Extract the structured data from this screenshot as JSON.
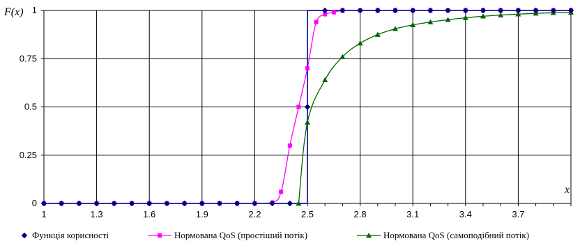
{
  "chart_data": {
    "type": "line",
    "xlabel": "x",
    "ylabel": "F(x)",
    "xlim": [
      1,
      4
    ],
    "ylim": [
      0,
      1
    ],
    "grid": true,
    "x_ticks": [
      "1",
      "1.3",
      "1.6",
      "1.9",
      "2.2",
      "2.5",
      "2.8",
      "3.1",
      "3.4",
      "3.7"
    ],
    "y_ticks": [
      "0",
      "0.25",
      "0.5",
      "0.75",
      "1"
    ],
    "legend_position": "bottom",
    "series": [
      {
        "name": "Функція корисності",
        "color": "#000080",
        "marker": "diamond",
        "line": "step",
        "points": [
          [
            1.0,
            0
          ],
          [
            1.1,
            0
          ],
          [
            1.2,
            0
          ],
          [
            1.3,
            0
          ],
          [
            1.4,
            0
          ],
          [
            1.5,
            0
          ],
          [
            1.6,
            0
          ],
          [
            1.7,
            0
          ],
          [
            1.8,
            0
          ],
          [
            1.9,
            0
          ],
          [
            2.0,
            0
          ],
          [
            2.1,
            0
          ],
          [
            2.2,
            0
          ],
          [
            2.3,
            0
          ],
          [
            2.4,
            0
          ],
          [
            2.5,
            0.5
          ],
          [
            2.6,
            1
          ],
          [
            2.7,
            1
          ],
          [
            2.8,
            1
          ],
          [
            2.9,
            1
          ],
          [
            3.0,
            1
          ],
          [
            3.1,
            1
          ],
          [
            3.2,
            1
          ],
          [
            3.3,
            1
          ],
          [
            3.4,
            1
          ],
          [
            3.5,
            1
          ],
          [
            3.6,
            1
          ],
          [
            3.7,
            1
          ],
          [
            3.8,
            1
          ],
          [
            3.9,
            1
          ],
          [
            4.0,
            1
          ]
        ]
      },
      {
        "name": "Нормована QoS (простіший потік)",
        "color": "#FF00FF",
        "marker": "square",
        "line": "smooth",
        "points": [
          [
            1.0,
            0
          ],
          [
            1.1,
            0
          ],
          [
            1.2,
            0
          ],
          [
            1.3,
            0
          ],
          [
            1.4,
            0
          ],
          [
            1.5,
            0
          ],
          [
            1.6,
            0
          ],
          [
            1.7,
            0
          ],
          [
            1.8,
            0
          ],
          [
            1.9,
            0
          ],
          [
            2.0,
            0
          ],
          [
            2.1,
            0
          ],
          [
            2.2,
            0
          ],
          [
            2.3,
            0.005
          ],
          [
            2.35,
            0.06
          ],
          [
            2.4,
            0.3
          ],
          [
            2.45,
            0.5
          ],
          [
            2.5,
            0.7
          ],
          [
            2.55,
            0.94
          ],
          [
            2.6,
            0.98
          ],
          [
            2.65,
            0.99
          ],
          [
            2.7,
            1
          ],
          [
            2.8,
            1
          ],
          [
            2.9,
            1
          ],
          [
            3.0,
            1
          ],
          [
            3.1,
            1
          ],
          [
            3.2,
            1
          ],
          [
            3.3,
            1
          ],
          [
            3.4,
            1
          ],
          [
            3.5,
            1
          ],
          [
            3.6,
            1
          ],
          [
            3.7,
            1
          ],
          [
            3.8,
            1
          ],
          [
            3.9,
            1
          ],
          [
            4.0,
            1
          ]
        ]
      },
      {
        "name": "Нормована QoS (самоподібний потік)",
        "color": "#006400",
        "marker": "triangle",
        "line": "smooth",
        "points": [
          [
            2.45,
            0
          ],
          [
            2.5,
            0.42
          ],
          [
            2.6,
            0.64
          ],
          [
            2.7,
            0.76
          ],
          [
            2.8,
            0.83
          ],
          [
            2.9,
            0.875
          ],
          [
            3.0,
            0.905
          ],
          [
            3.1,
            0.925
          ],
          [
            3.2,
            0.94
          ],
          [
            3.3,
            0.952
          ],
          [
            3.4,
            0.962
          ],
          [
            3.5,
            0.97
          ],
          [
            3.6,
            0.976
          ],
          [
            3.7,
            0.981
          ],
          [
            3.8,
            0.985
          ],
          [
            3.9,
            0.988
          ],
          [
            4.0,
            0.99
          ]
        ]
      }
    ]
  }
}
